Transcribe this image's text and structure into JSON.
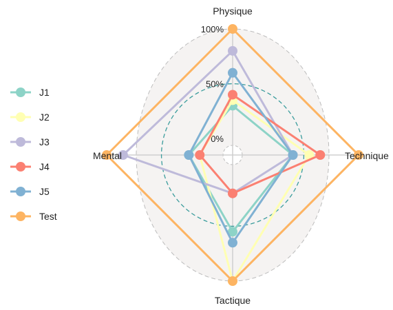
{
  "chart_data": {
    "type": "radar",
    "axes": [
      "Physique",
      "Technique",
      "Tactique",
      "Mental"
    ],
    "ticks": [
      {
        "label": "0%",
        "value": 0
      },
      {
        "label": "50%",
        "value": 50
      },
      {
        "label": "100%",
        "value": 100
      }
    ],
    "range": [
      -15,
      100
    ],
    "series": [
      {
        "name": "J1",
        "color": "#8dd3c7",
        "values": [
          30,
          40,
          55,
          25
        ]
      },
      {
        "name": "J2",
        "color": "#ffffb3",
        "values": [
          35,
          55,
          100,
          15
        ]
      },
      {
        "name": "J3",
        "color": "#bebada",
        "values": [
          80,
          40,
          20,
          85
        ]
      },
      {
        "name": "J4",
        "color": "#fb8072",
        "values": [
          40,
          65,
          20,
          15
        ]
      },
      {
        "name": "J5",
        "color": "#80b1d3",
        "values": [
          60,
          40,
          65,
          25
        ]
      },
      {
        "name": "Test",
        "color": "#fdb462",
        "values": [
          100,
          100,
          100,
          100
        ]
      }
    ],
    "legend_position": "left"
  }
}
